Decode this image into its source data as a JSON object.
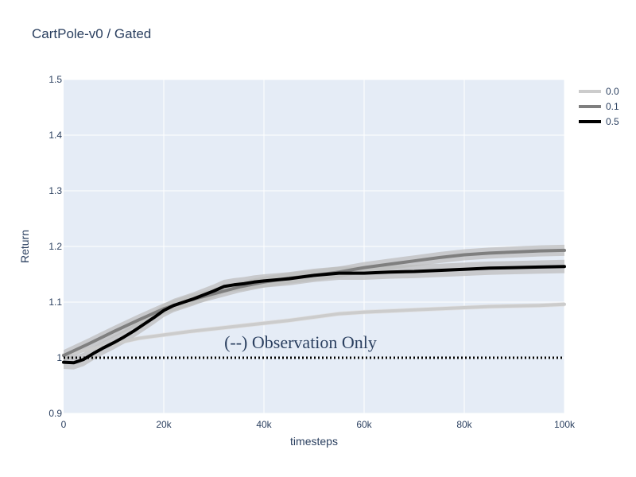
{
  "chart_data": {
    "type": "line",
    "title": "CartPole-v0 / Gated",
    "xlabel": "timesteps",
    "ylabel": "Return",
    "xlim": [
      0,
      100000
    ],
    "ylim": [
      0.9,
      1.5
    ],
    "x_ticks": [
      0,
      20000,
      40000,
      60000,
      80000,
      100000
    ],
    "x_tick_labels": [
      "0",
      "20k",
      "40k",
      "60k",
      "80k",
      "100k"
    ],
    "y_ticks": [
      0.9,
      1,
      1.1,
      1.2,
      1.3,
      1.4,
      1.5
    ],
    "y_tick_labels": [
      "0.9",
      "1",
      "1.1",
      "1.2",
      "1.3",
      "1.4",
      "1.5"
    ],
    "grid": true,
    "legend_position": "top-right",
    "reference_line": {
      "y": 1.0,
      "style": "dotted",
      "color": "#000000"
    },
    "annotation": "(--) Observation Only",
    "series": [
      {
        "name": "0.0",
        "color": "#cccccc",
        "band_color": "#e0e0e0",
        "x": [
          0,
          5000,
          10000,
          15000,
          20000,
          25000,
          30000,
          35000,
          40000,
          45000,
          50000,
          55000,
          60000,
          65000,
          70000,
          75000,
          80000,
          85000,
          90000,
          95000,
          100000
        ],
        "y": [
          1.005,
          1.015,
          1.025,
          1.035,
          1.041,
          1.047,
          1.052,
          1.057,
          1.062,
          1.067,
          1.073,
          1.079,
          1.082,
          1.084,
          1.086,
          1.088,
          1.09,
          1.092,
          1.093,
          1.094,
          1.096
        ],
        "band": 0.004
      },
      {
        "name": "0.1",
        "color": "#7f7f7f",
        "band_color": "#bdbdbd",
        "x": [
          0,
          5000,
          10000,
          15000,
          20000,
          25000,
          30000,
          35000,
          40000,
          45000,
          50000,
          55000,
          60000,
          65000,
          70000,
          75000,
          80000,
          85000,
          90000,
          95000,
          100000
        ],
        "y": [
          1.004,
          1.025,
          1.047,
          1.068,
          1.088,
          1.103,
          1.115,
          1.127,
          1.136,
          1.143,
          1.148,
          1.154,
          1.162,
          1.168,
          1.174,
          1.18,
          1.185,
          1.188,
          1.19,
          1.192,
          1.193
        ],
        "band": 0.01
      },
      {
        "name": "0.5",
        "color": "#000000",
        "band_color": "#bdbdbd",
        "x": [
          0,
          2000,
          4000,
          6000,
          8000,
          10000,
          12000,
          14000,
          16000,
          18000,
          20000,
          22000,
          24000,
          26000,
          28000,
          30000,
          32000,
          34000,
          36000,
          38000,
          40000,
          45000,
          50000,
          55000,
          60000,
          65000,
          70000,
          75000,
          80000,
          85000,
          90000,
          95000,
          100000
        ],
        "y": [
          0.992,
          0.991,
          0.997,
          1.008,
          1.018,
          1.027,
          1.037,
          1.048,
          1.06,
          1.072,
          1.085,
          1.094,
          1.1,
          1.106,
          1.113,
          1.12,
          1.128,
          1.131,
          1.133,
          1.136,
          1.138,
          1.142,
          1.148,
          1.152,
          1.152,
          1.154,
          1.155,
          1.157,
          1.159,
          1.161,
          1.162,
          1.163,
          1.164
        ],
        "band": 0.012
      }
    ]
  }
}
